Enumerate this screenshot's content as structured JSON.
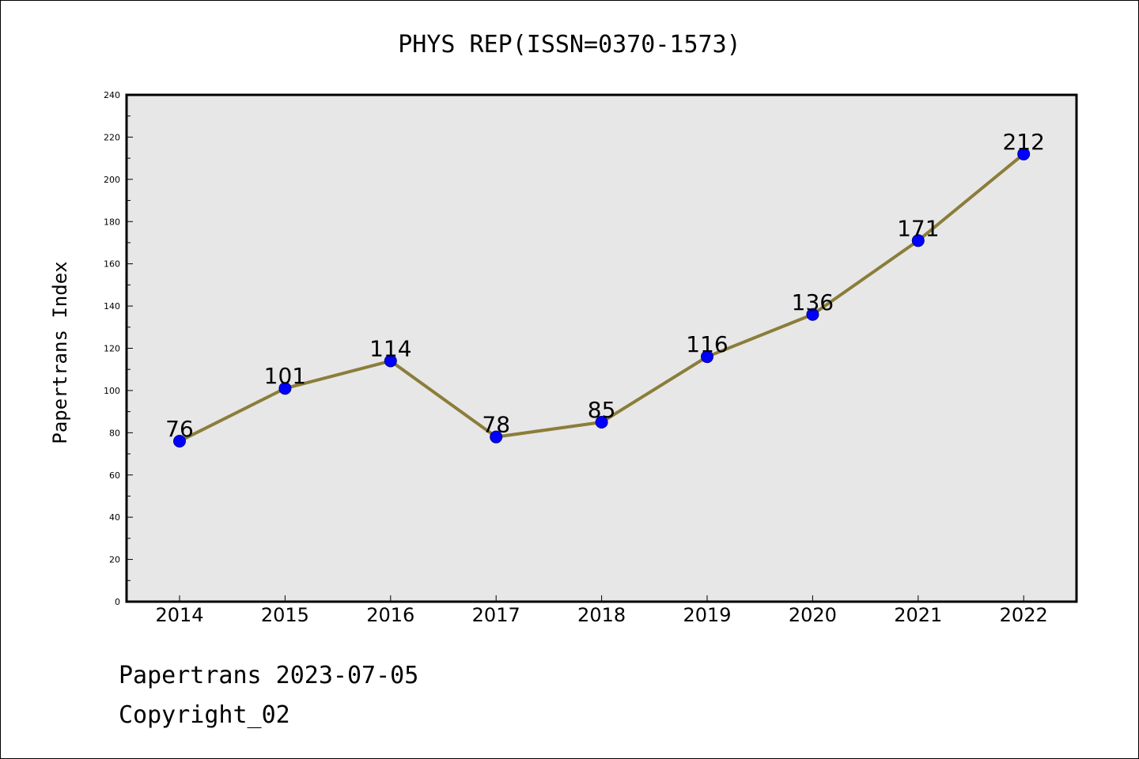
{
  "chart_data": {
    "type": "line",
    "title": "PHYS REP(ISSN=0370-1573)",
    "xlabel": "",
    "ylabel": "Papertrans Index",
    "categories": [
      "2014",
      "2015",
      "2016",
      "2017",
      "2018",
      "2019",
      "2020",
      "2021",
      "2022"
    ],
    "series": [
      {
        "values": [
          76,
          101,
          114,
          78,
          85,
          116,
          136,
          171,
          212
        ]
      }
    ],
    "data_labels": [
      "76",
      "101",
      "114",
      "78",
      "85",
      "116",
      "136",
      "171",
      "212"
    ],
    "ylim": [
      0,
      240
    ],
    "yticks": [
      "0",
      "20",
      "40",
      "60",
      "80",
      "100",
      "120",
      "140",
      "160",
      "180",
      "200",
      "220",
      "240"
    ],
    "grid": false,
    "plot_background": "#e7e7e7",
    "line_color": "#8b7d3a",
    "marker_color": "#0000ff"
  },
  "footer": {
    "source": "Papertrans 2023-07-05",
    "copyright": "Copyright_02"
  }
}
